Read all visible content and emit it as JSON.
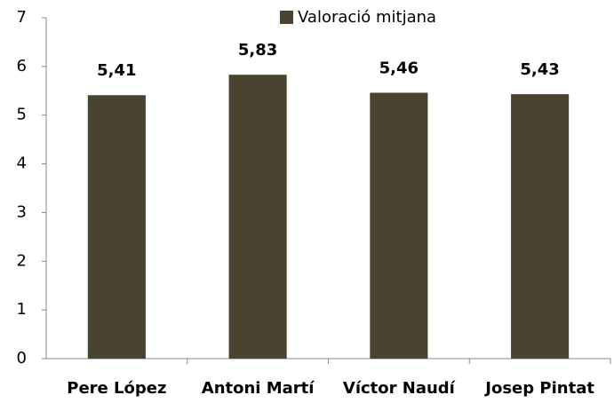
{
  "chart_data": {
    "type": "bar",
    "series": [
      {
        "name": "Valoració mitjana",
        "color": "#4a4330",
        "values": [
          5.41,
          5.83,
          5.46,
          5.43
        ],
        "value_labels": [
          "5,41",
          "5,83",
          "5,46",
          "5,43"
        ]
      }
    ],
    "categories": [
      "Pere López",
      "Antoni Martí",
      "Víctor Naudí",
      "Josep Pintat"
    ],
    "ylim": [
      0,
      7
    ],
    "yticks": [
      0,
      1,
      2,
      3,
      4,
      5,
      6,
      7
    ],
    "grid": false,
    "legend": "top"
  }
}
